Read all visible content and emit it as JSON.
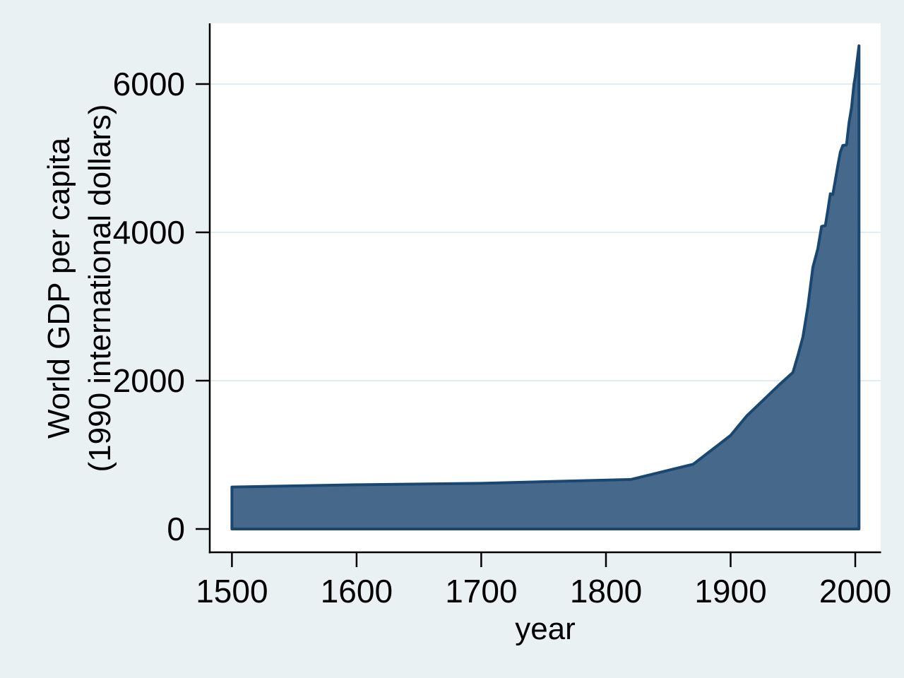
{
  "figure": {
    "y_axis_title_line1": "World GDP per capita",
    "y_axis_title_line2": "(1990 international dollars)",
    "x_axis_title": "year"
  },
  "chart_data": {
    "type": "area",
    "title": "",
    "xlabel": "year",
    "ylabel": "World GDP per capita (1990 international dollars)",
    "series": [
      {
        "name": "World GDP per capita (1990 international dollars)",
        "x": [
          1500,
          1600,
          1700,
          1820,
          1870,
          1900,
          1913,
          1940,
          1950,
          1954,
          1958,
          1962,
          1966,
          1970,
          1973,
          1976,
          1978,
          1980,
          1982,
          1984,
          1986,
          1988,
          1990,
          1993,
          1995,
          1997,
          1999,
          2000,
          2001,
          2003
        ],
        "values": [
          566,
          596,
          615,
          667,
          873,
          1262,
          1526,
          1960,
          2110,
          2340,
          2590,
          3000,
          3530,
          3780,
          4080,
          4090,
          4300,
          4520,
          4510,
          4700,
          4900,
          5080,
          5170,
          5180,
          5480,
          5680,
          6000,
          6100,
          6250,
          6516
        ]
      }
    ],
    "baseline": 0,
    "xlim": [
      1482.2,
      2020.4
    ],
    "ylim": [
      -324,
      6819
    ],
    "x_tick_values": [
      1500,
      1600,
      1700,
      1800,
      1900,
      2000
    ],
    "x_tick_labels": [
      "1500",
      "1600",
      "1700",
      "1800",
      "1900",
      "2000"
    ],
    "y_tick_values": [
      0,
      2000,
      4000,
      6000
    ],
    "y_tick_labels": [
      "0",
      "2000",
      "4000",
      "6000"
    ],
    "gridline_values": [
      2000,
      4000,
      6000
    ],
    "grid": "horizontal",
    "legend": "none",
    "colors": {
      "page_background": "#eaf1f3",
      "plot_background": "#ffffff",
      "area_fill": "#46698b",
      "area_stroke": "#1a476f",
      "gridline": "#e3ecf0",
      "axis": "#000000",
      "text": "#000000"
    }
  }
}
